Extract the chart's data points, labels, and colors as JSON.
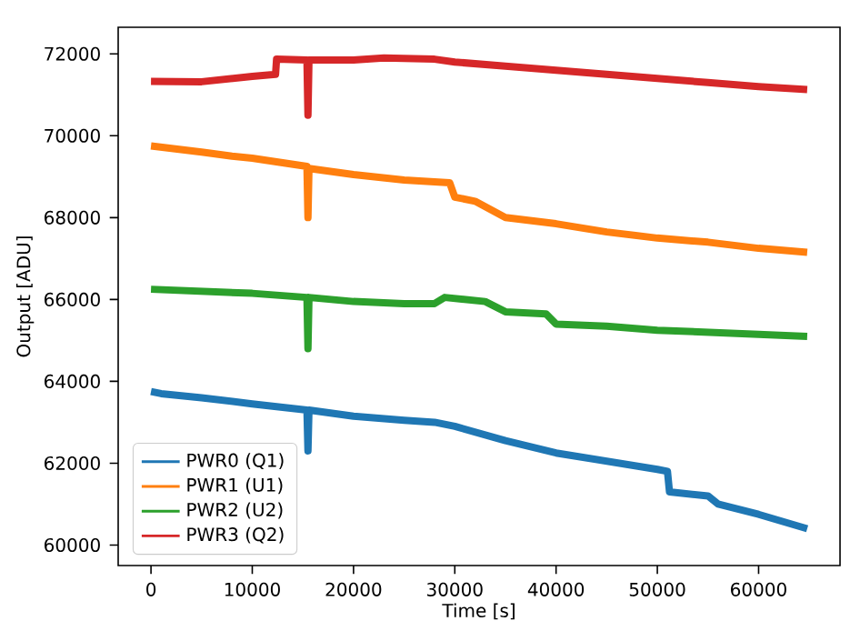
{
  "chart_data": {
    "type": "line",
    "xlabel": "Time [s]",
    "ylabel": "Output [ADU]",
    "xlim": [
      -3240,
      68040
    ],
    "ylim": [
      59500,
      72650
    ],
    "xticks": [
      0,
      10000,
      20000,
      30000,
      40000,
      50000,
      60000
    ],
    "yticks": [
      60000,
      62000,
      64000,
      66000,
      68000,
      70000,
      72000
    ],
    "grid": false,
    "legend": "bottom left",
    "marker": "none",
    "line_style": "solid",
    "series": [
      {
        "name": "PWR0 (Q1)",
        "color": "#1f77b4",
        "x": [
          0,
          1000,
          5000,
          10000,
          15400,
          15500,
          15600,
          20000,
          25000,
          28000,
          30000,
          35000,
          40000,
          45000,
          50000,
          51000,
          51200,
          55000,
          56000,
          60000,
          64800
        ],
        "values": [
          63750,
          63700,
          63600,
          63450,
          63300,
          62300,
          63300,
          63150,
          63050,
          63000,
          62900,
          62550,
          62250,
          62050,
          61850,
          61800,
          61300,
          61200,
          61000,
          60750,
          60400
        ]
      },
      {
        "name": "PWR1 (U1)",
        "color": "#ff7f0e",
        "x": [
          0,
          5000,
          8000,
          10000,
          15400,
          15500,
          15600,
          20000,
          25000,
          29500,
          30000,
          32000,
          35000,
          40000,
          45000,
          50000,
          55000,
          60000,
          64800
        ],
        "values": [
          69750,
          69600,
          69500,
          69450,
          69250,
          68000,
          69200,
          69050,
          68920,
          68850,
          68500,
          68400,
          68000,
          67850,
          67650,
          67500,
          67400,
          67250,
          67150
        ]
      },
      {
        "name": "PWR2 (U2)",
        "color": "#2ca02c",
        "x": [
          0,
          5000,
          10000,
          15400,
          15500,
          15600,
          20000,
          25000,
          28000,
          29000,
          33000,
          35000,
          39000,
          40000,
          45000,
          50000,
          55000,
          60000,
          64800
        ],
        "values": [
          66250,
          66200,
          66150,
          66050,
          64800,
          66050,
          65950,
          65900,
          65900,
          66050,
          65950,
          65700,
          65650,
          65400,
          65350,
          65250,
          65200,
          65150,
          65100
        ]
      },
      {
        "name": "PWR3 (Q2)",
        "color": "#d62728",
        "x": [
          0,
          5000,
          10000,
          12300,
          12400,
          15400,
          15500,
          15600,
          20000,
          23000,
          28000,
          30000,
          35000,
          40000,
          45000,
          50000,
          55000,
          60000,
          64800
        ],
        "values": [
          71330,
          71320,
          71450,
          71500,
          71870,
          71850,
          70500,
          71850,
          71850,
          71900,
          71870,
          71800,
          71700,
          71600,
          71500,
          71400,
          71300,
          71200,
          71130
        ]
      }
    ]
  }
}
